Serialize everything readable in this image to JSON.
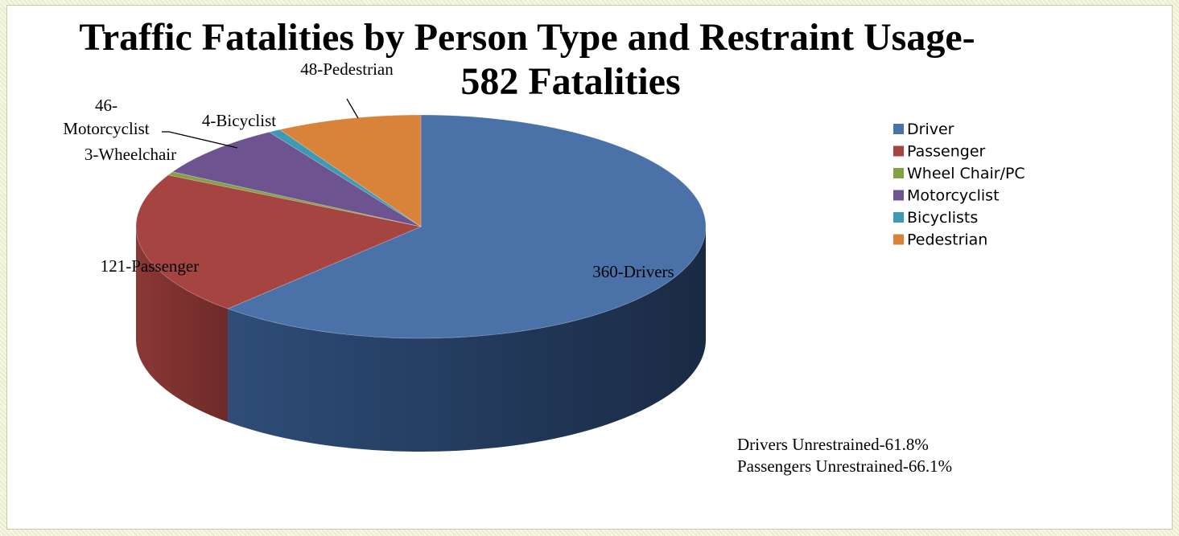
{
  "chart_data": {
    "type": "pie",
    "title_line1": "Traffic Fatalities by Person Type and Restraint Usage-",
    "title_line2": "582 Fatalities",
    "series": [
      {
        "legend": "Driver",
        "value": 360,
        "label": "360-Drivers",
        "color": "#4a72a8"
      },
      {
        "legend": "Passenger",
        "value": 121,
        "label": "121-Passenger",
        "color": "#a64442"
      },
      {
        "legend": "Wheel Chair/PC",
        "value": 3,
        "label": "3-Wheelchair",
        "color": "#82a046"
      },
      {
        "legend": "Motorcyclist",
        "value": 46,
        "label_line1": "46-",
        "label_line2": "Motorcyclist",
        "color": "#6d5490"
      },
      {
        "legend": "Bicyclists",
        "value": 4,
        "label": "4-Bicyclist",
        "color": "#3d9ab2"
      },
      {
        "legend": "Pedestrian",
        "value": 48,
        "label": "48-Pedestrian",
        "color": "#d8823a"
      }
    ],
    "legend_position": "right",
    "notes": [
      "Drivers Unrestrained-61.8%",
      "Passengers Unrestrained-66.1%"
    ]
  }
}
